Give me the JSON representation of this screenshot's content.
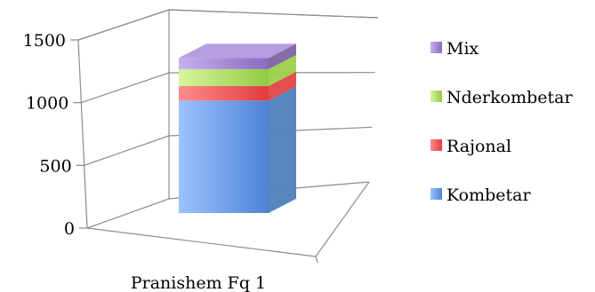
{
  "chart_data": {
    "type": "bar",
    "stacked": true,
    "three_d": true,
    "categories": [
      "Pranishem Fq 1"
    ],
    "series": [
      {
        "name": "Kombetar",
        "values": [
          1000
        ],
        "color": "#4f81bd"
      },
      {
        "name": "Rajonal",
        "values": [
          130
        ],
        "color": "#e04646"
      },
      {
        "name": "Nderkombetar",
        "values": [
          150
        ],
        "color": "#9bd14a"
      },
      {
        "name": "Mix",
        "values": [
          100
        ],
        "color": "#8064a2"
      }
    ],
    "y_ticks": [
      "0",
      "500",
      "1000",
      "1500"
    ],
    "ylim": [
      0,
      1500
    ],
    "grid": true,
    "legend_position": "right",
    "legend_order": [
      "Mix",
      "Nderkombetar",
      "Rajonal",
      "Kombetar"
    ]
  }
}
